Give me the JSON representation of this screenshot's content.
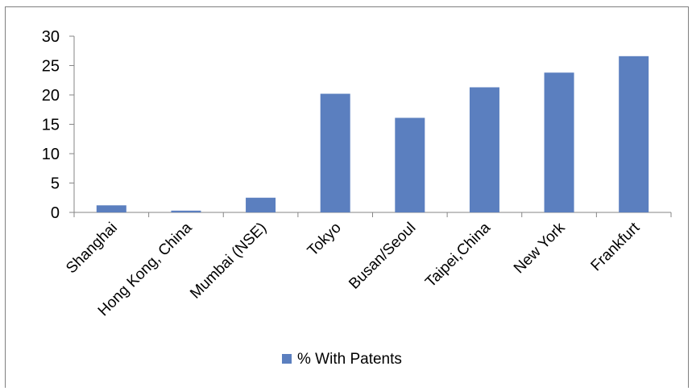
{
  "chart_data": {
    "type": "bar",
    "categories": [
      "Shanghai",
      "Hong Kong, China",
      "Mumbai (NSE)",
      "Tokyo",
      "Busan/Seoul",
      "Taipei,China",
      "New York",
      "Frankfurt"
    ],
    "series": [
      {
        "name": "% With Patents",
        "values": [
          1.2,
          0.3,
          2.5,
          20.2,
          16.1,
          21.3,
          23.8,
          26.6
        ],
        "color": "#5b7fbf"
      }
    ],
    "ylim": [
      0,
      30
    ],
    "yticks": [
      0,
      5,
      10,
      15,
      20,
      25,
      30
    ],
    "title": "",
    "xlabel": "",
    "ylabel": "",
    "grid": false,
    "legend_position": "bottom"
  }
}
